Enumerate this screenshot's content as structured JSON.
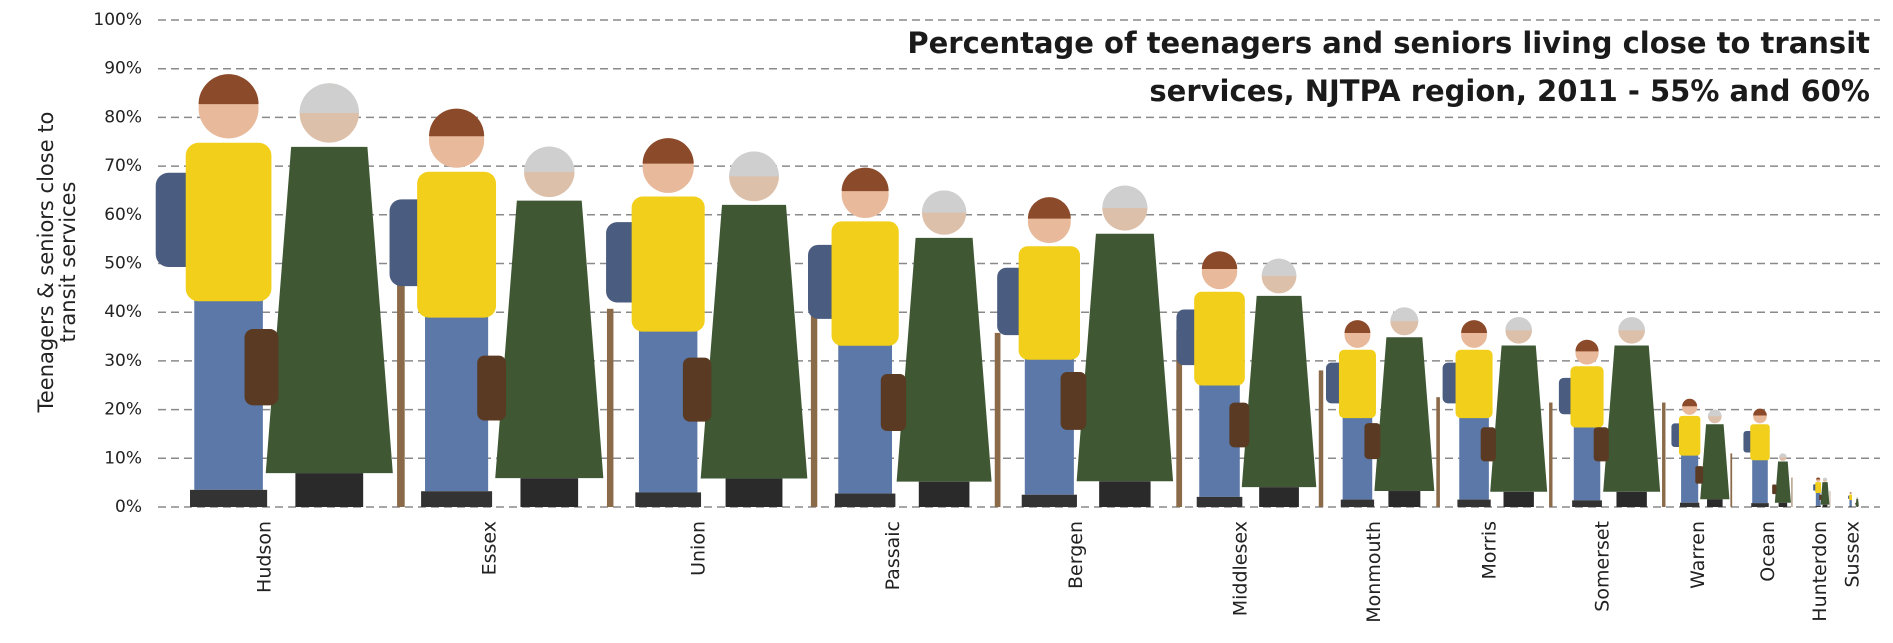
{
  "chart_data": {
    "type": "pictograph",
    "title": "Percentage of teenagers and seniors living close to transit services, NJTPA region, 2011 - 55% and 60%",
    "y_label": "Teenagers & seniors close to transit services",
    "categories": [
      "Hudson",
      "Essex",
      "Union",
      "Passaic",
      "Bergen",
      "Middlesex",
      "Monmouth",
      "Morris",
      "Somerset",
      "Warren",
      "Ocean",
      "Hunterdon",
      "Sussex"
    ],
    "series": [
      {
        "color": "#f2cf1a",
        "values": [
          88,
          81,
          75,
          69,
          63,
          52,
          38,
          38,
          34,
          22,
          20,
          6,
          3
        ]
      },
      {
        "color": "#3f5733",
        "values": [
          87,
          74,
          73,
          65,
          66,
          51,
          41,
          39,
          39,
          20,
          11,
          6,
          2
        ]
      }
    ],
    "ylim": [
      0,
      100
    ],
    "yticks": [
      {
        "value": 0,
        "label": "0%"
      },
      {
        "value": 10,
        "label": "10%"
      },
      {
        "value": 20,
        "label": "20%"
      },
      {
        "value": 30,
        "label": "30%"
      },
      {
        "value": 40,
        "label": "40%"
      },
      {
        "value": 50,
        "label": "50%"
      },
      {
        "value": 60,
        "label": "60%"
      },
      {
        "value": 70,
        "label": "70%"
      },
      {
        "value": 80,
        "label": "80%"
      },
      {
        "value": 90,
        "label": "90%"
      },
      {
        "value": 100,
        "label": "100%"
      }
    ],
    "grid": true
  }
}
